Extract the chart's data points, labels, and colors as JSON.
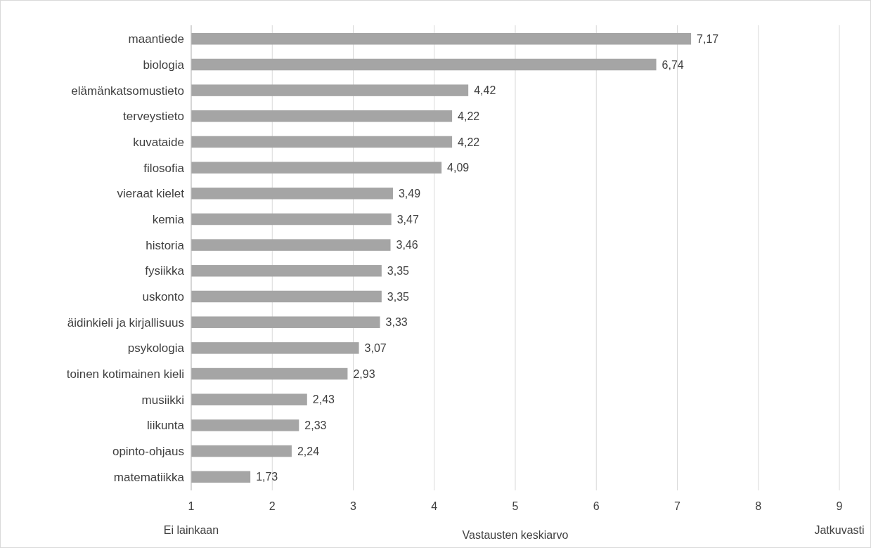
{
  "chart_data": {
    "type": "bar",
    "orientation": "horizontal",
    "xlabel": "Vastausten keskiarvo",
    "categories": [
      "maantiede",
      "biologia",
      "elämänkatsomustieto",
      "terveystieto",
      "kuvataide",
      "filosofia",
      "vieraat kielet",
      "kemia",
      "historia",
      "fysiikka",
      "uskonto",
      "äidinkieli ja kirjallisuus",
      "psykologia",
      "toinen kotimainen kieli",
      "musiikki",
      "liikunta",
      "opinto-ohjaus",
      "matematiikka"
    ],
    "values": [
      7.17,
      6.74,
      4.42,
      4.22,
      4.22,
      4.09,
      3.49,
      3.47,
      3.46,
      3.35,
      3.35,
      3.33,
      3.07,
      2.93,
      2.43,
      2.33,
      2.24,
      1.73
    ],
    "value_labels": [
      "7,17",
      "6,74",
      "4,42",
      "4,22",
      "4,22",
      "4,09",
      "3,49",
      "3,47",
      "3,46",
      "3,35",
      "3,35",
      "3,33",
      "3,07",
      "2,93",
      "2,43",
      "2,33",
      "2,24",
      "1,73"
    ],
    "color": "#a5a5a5",
    "xlim": [
      1,
      9
    ],
    "xticks": [
      {
        "value": 1,
        "label": "1\nEi lainkaan"
      },
      2,
      3,
      4,
      5,
      6,
      7,
      8,
      {
        "value": 9,
        "label": "9\nJatkuvasti"
      }
    ],
    "grid": "x"
  }
}
